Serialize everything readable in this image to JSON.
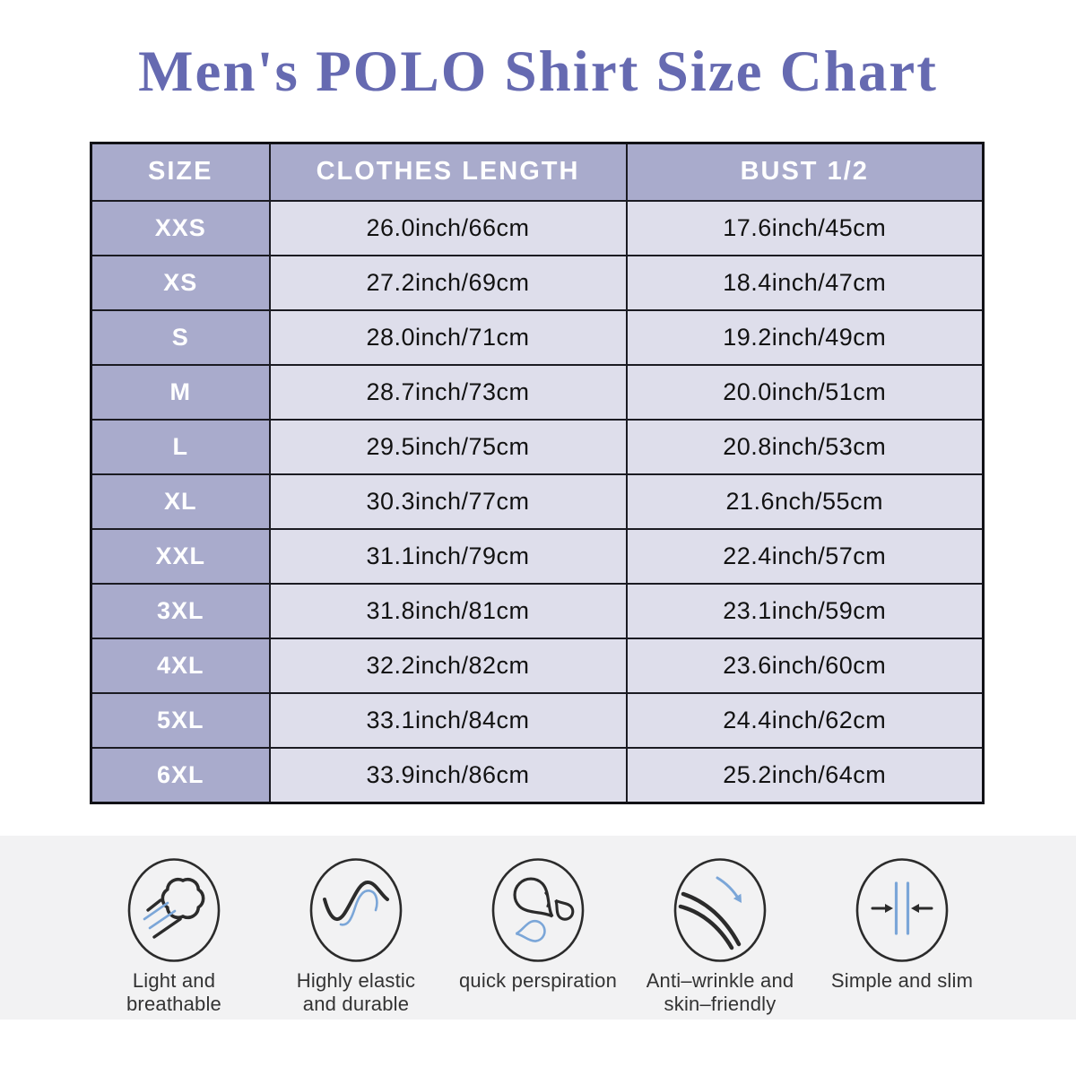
{
  "chart_data": {
    "type": "table",
    "title": "Men's POLO Shirt Size Chart",
    "columns": [
      "SIZE",
      "CLOTHES LENGTH",
      "BUST 1/2"
    ],
    "rows": [
      [
        "XXS",
        "26.0inch/66cm",
        "17.6inch/45cm"
      ],
      [
        "XS",
        "27.2inch/69cm",
        "18.4inch/47cm"
      ],
      [
        "S",
        "28.0inch/71cm",
        "19.2inch/49cm"
      ],
      [
        "M",
        "28.7inch/73cm",
        "20.0inch/51cm"
      ],
      [
        "L",
        "29.5inch/75cm",
        "20.8inch/53cm"
      ],
      [
        "XL",
        "30.3inch/77cm",
        "21.6nch/55cm"
      ],
      [
        "XXL",
        "31.1inch/79cm",
        "22.4inch/57cm"
      ],
      [
        "3XL",
        "31.8inch/81cm",
        "23.1inch/59cm"
      ],
      [
        "4XL",
        "32.2inch/82cm",
        "23.6inch/60cm"
      ],
      [
        "5XL",
        "33.1inch/84cm",
        "24.4inch/62cm"
      ],
      [
        "6XL",
        "33.9inch/86cm",
        "25.2inch/64cm"
      ]
    ],
    "layout": {
      "header_position": "top-and-left",
      "grid": true
    }
  },
  "features": [
    {
      "id": "light-breathable",
      "icon": "wind-icon",
      "lines": [
        "Light and",
        "breathable"
      ]
    },
    {
      "id": "highly-elastic",
      "icon": "wave-icon",
      "lines": [
        "Highly elastic",
        "and durable"
      ]
    },
    {
      "id": "quick-perspiration",
      "icon": "drops-icon",
      "lines": [
        "quick perspiration"
      ]
    },
    {
      "id": "anti-wrinkle",
      "icon": "antiwrinkle-icon",
      "lines": [
        "Anti–wrinkle and",
        "skin–friendly"
      ]
    },
    {
      "id": "simple-slim",
      "icon": "slim-icon",
      "lines": [
        "Simple and slim"
      ]
    }
  ],
  "colors": {
    "title_text": "#666AB1",
    "table_header_bg": "#A9ABCC",
    "table_header_text": "#FFFFFF",
    "table_cell_bg": "#DEDEEB",
    "table_cell_text": "#121212",
    "table_border": "#1B1B22",
    "features_band_bg": "#F2F2F3",
    "icon_stroke": "#2B2B2B",
    "icon_accent_blue": "#7BA6D8",
    "feature_label_text": "#333333"
  }
}
